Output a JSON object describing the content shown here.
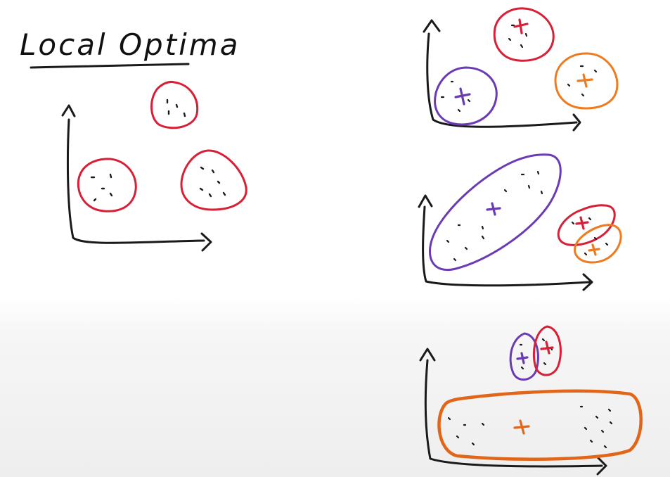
{
  "title": "Local Optima",
  "colors": {
    "ink": "#1a1a1a",
    "red": "#d81f36",
    "purple": "#6a3bb5",
    "orange": "#f07a1e",
    "dark_orange": "#e2661a"
  },
  "panels": [
    {
      "name": "initial-data-panel",
      "clusters": 3,
      "colors": [
        "red",
        "red",
        "red"
      ],
      "centroids": false
    },
    {
      "name": "good-clustering-panel",
      "clusters": 3,
      "colors": [
        "purple",
        "red",
        "orange"
      ],
      "centroids": true
    },
    {
      "name": "local-optimum-panel-1",
      "clusters": 3,
      "colors": [
        "purple",
        "red",
        "orange"
      ],
      "centroids": true
    },
    {
      "name": "local-optimum-panel-2",
      "clusters": 3,
      "colors": [
        "purple",
        "red",
        "orange"
      ],
      "centroids": true
    }
  ]
}
